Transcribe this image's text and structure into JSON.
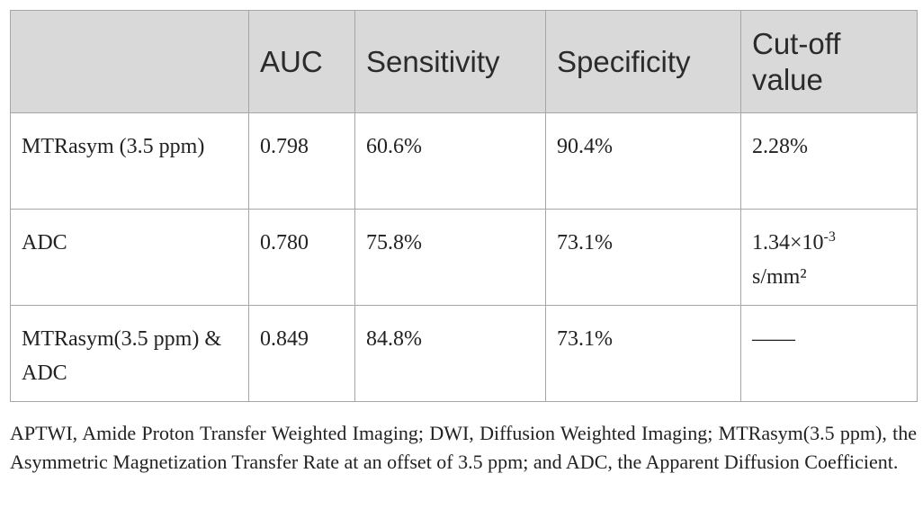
{
  "table": {
    "header": [
      "",
      "AUC",
      "Sensitivity",
      "Specificity",
      "Cut-off value"
    ],
    "rows": [
      [
        "MTRasym (3.5 ppm)",
        "0.798",
        "60.6%",
        "90.4%",
        "2.28%"
      ],
      [
        "ADC",
        "0.780",
        "75.8%",
        "73.1%",
        {
          "text": "1.34×10",
          "superscript": "-3",
          "after": "s/mm²"
        }
      ],
      [
        "MTRasym(3.5 ppm) & ADC",
        "0.849",
        "84.8%",
        "73.1%",
        "——"
      ]
    ]
  },
  "footnote": "APTWI, Amide Proton Transfer Weighted Imaging; DWI, Diffusion Weighted Imaging; MTRasym(3.5 ppm), the Asymmetric Magnetization Transfer Rate at an offset of 3.5 ppm; and ADC, the Apparent Diffusion Coefficient."
}
